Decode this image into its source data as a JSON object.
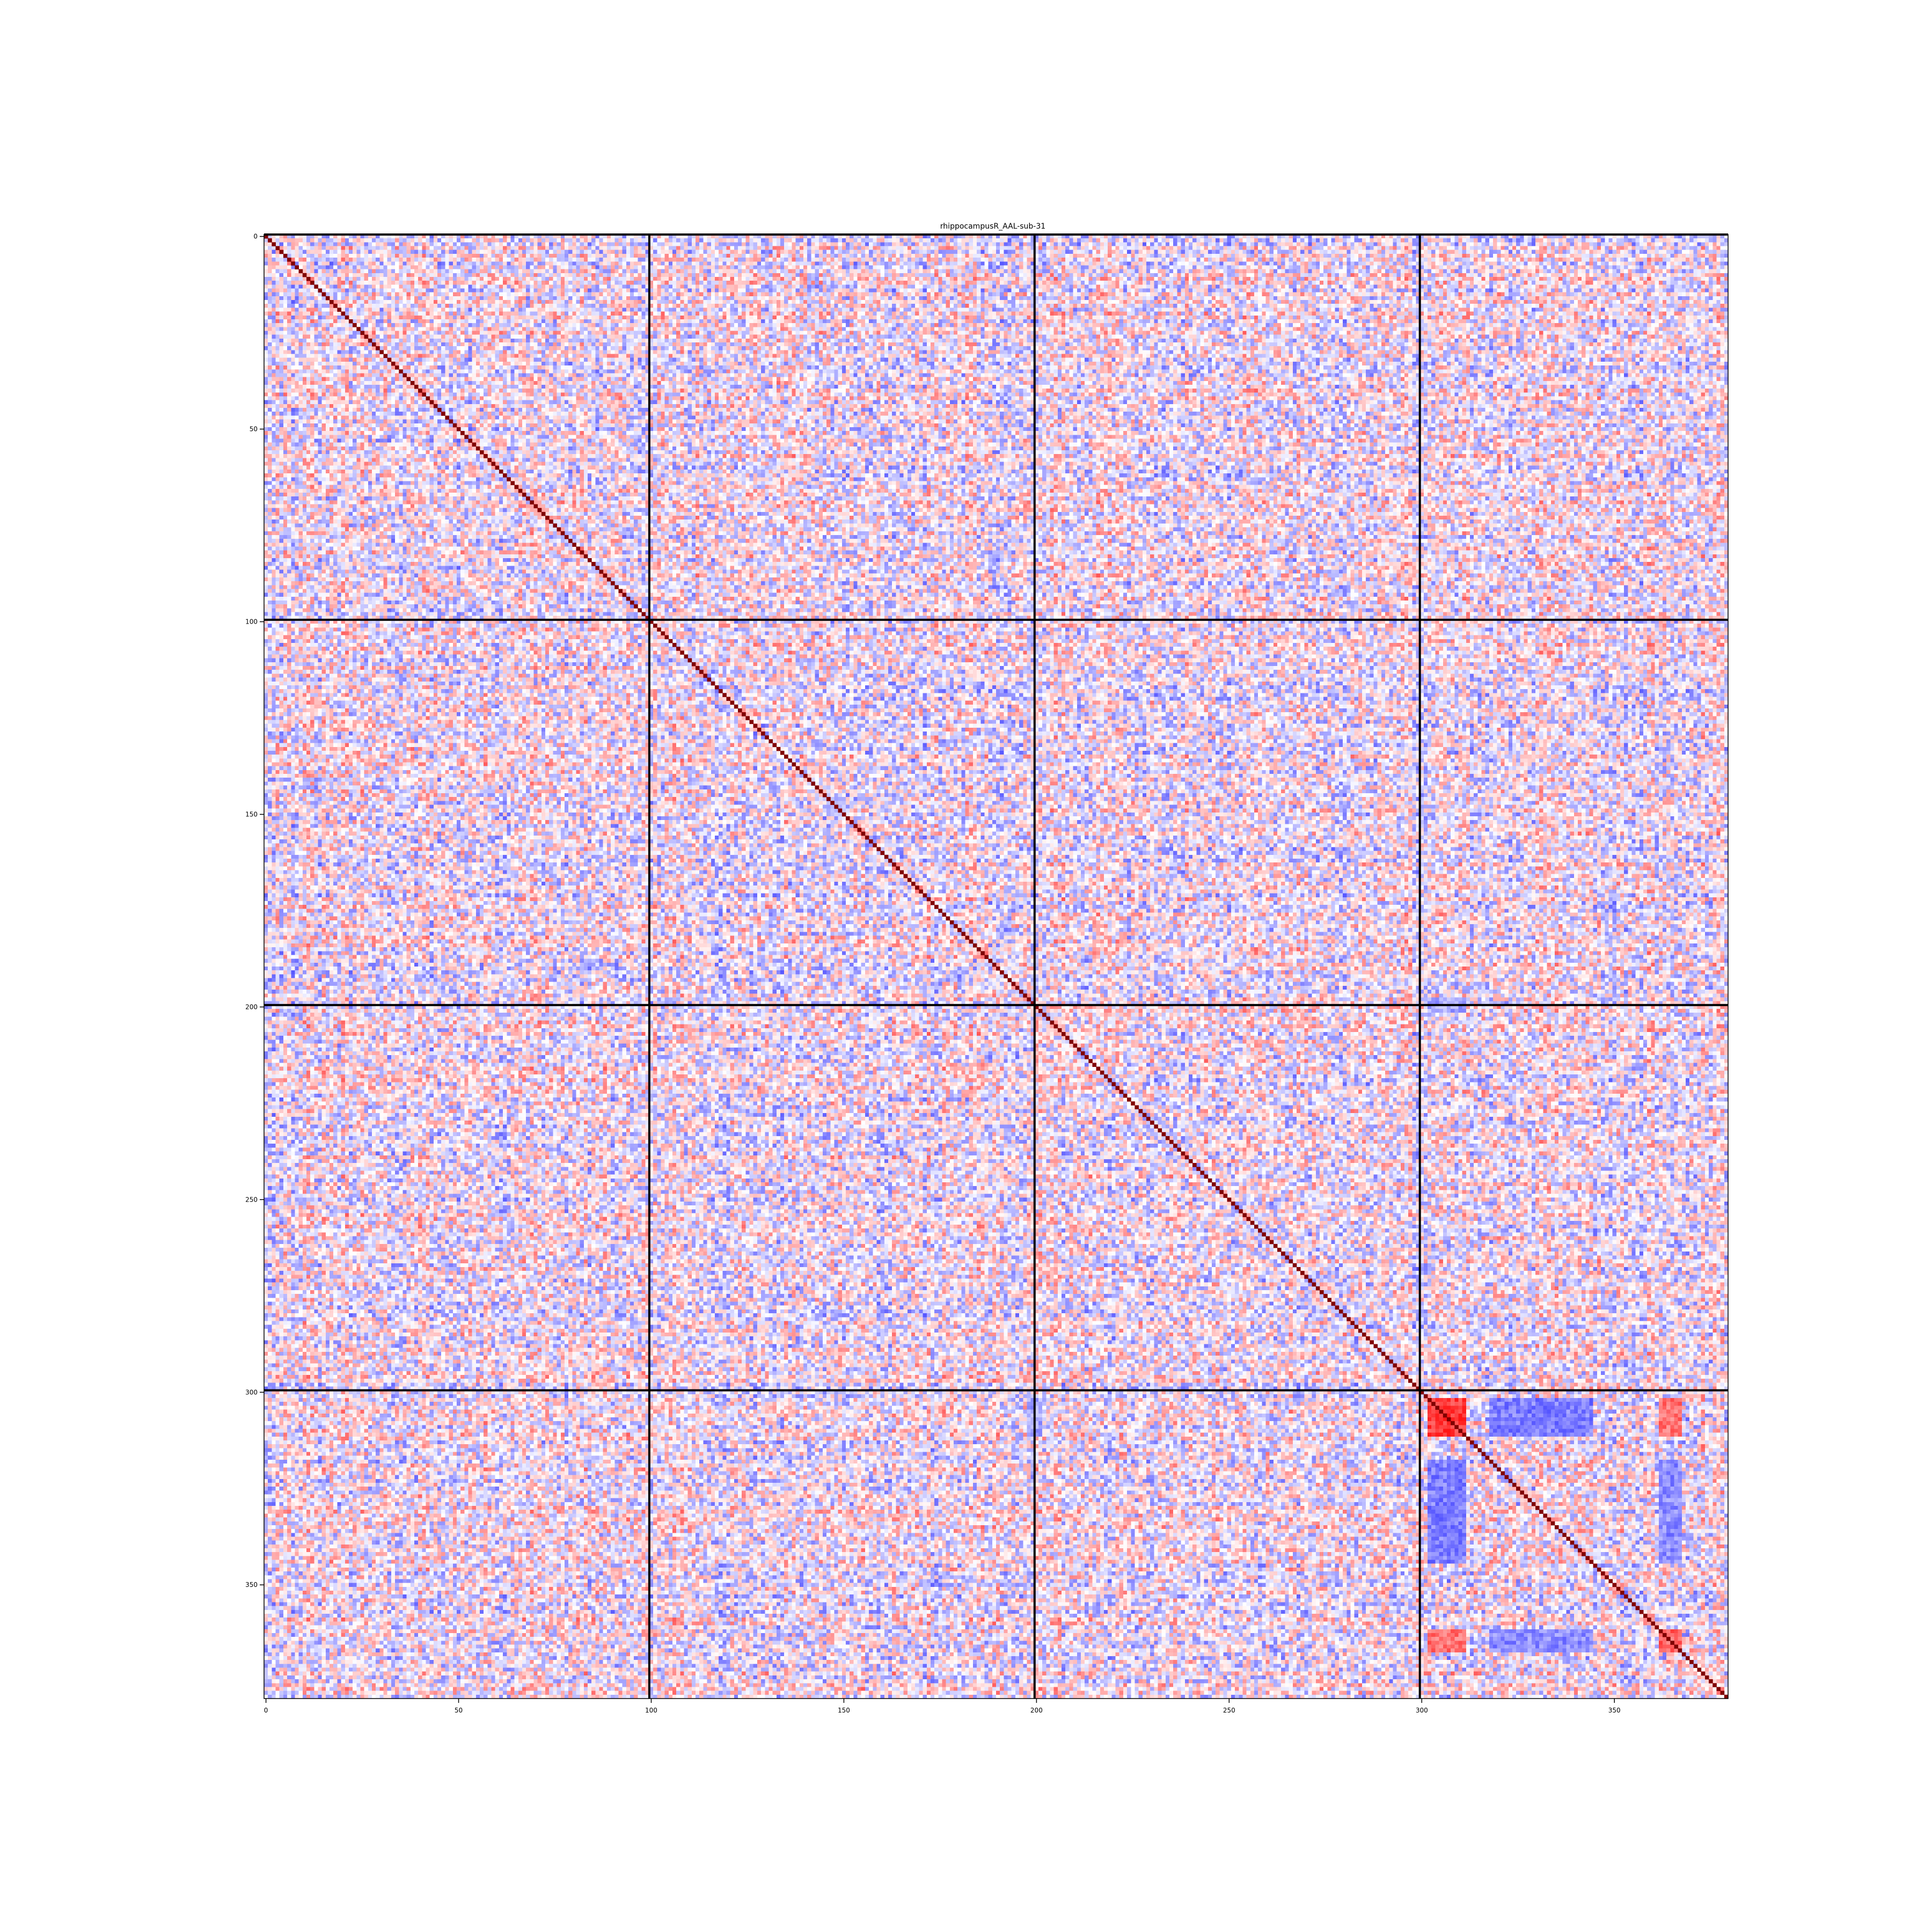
{
  "chart_data": {
    "type": "heatmap",
    "title": "rhippocampusR_AAL-sub-31",
    "xlabel": "",
    "ylabel": "",
    "n": 380,
    "xlim": [
      0,
      380
    ],
    "ylim": [
      380,
      0
    ],
    "x_ticks": [
      0,
      50,
      100,
      150,
      200,
      250,
      300,
      350
    ],
    "y_ticks": [
      0,
      50,
      100,
      150,
      200,
      250,
      300,
      350
    ],
    "x_tick_labels": [
      "0",
      "50",
      "100",
      "150",
      "200",
      "250",
      "300",
      "350"
    ],
    "y_tick_labels": [
      "0",
      "50",
      "100",
      "150",
      "200",
      "250",
      "300",
      "350"
    ],
    "block_boundaries": [
      100,
      200,
      300
    ],
    "colormap": "bwr",
    "value_range": [
      -1,
      1
    ],
    "diagonal_value": 1,
    "colors": {
      "negative": "#0000ff",
      "zero": "#ffffff",
      "positive": "#ff0000",
      "diagonal": "#800000",
      "boundary": "#000000"
    },
    "strong_positive_regions": [
      {
        "rows": [
          302,
          312
        ],
        "cols": [
          302,
          312
        ],
        "value": 0.75
      },
      {
        "rows": [
          362,
          368
        ],
        "cols": [
          362,
          368
        ],
        "value": 0.6
      },
      {
        "rows": [
          302,
          312
        ],
        "cols": [
          362,
          368
        ],
        "value": 0.55
      },
      {
        "rows": [
          362,
          368
        ],
        "cols": [
          302,
          312
        ],
        "value": 0.55
      }
    ],
    "strong_negative_regions": [
      {
        "rows": [
          318,
          345
        ],
        "cols": [
          302,
          312
        ],
        "value": -0.55
      },
      {
        "rows": [
          302,
          312
        ],
        "cols": [
          318,
          345
        ],
        "value": -0.5
      },
      {
        "rows": [
          318,
          345
        ],
        "cols": [
          362,
          368
        ],
        "value": -0.45
      },
      {
        "rows": [
          362,
          368
        ],
        "cols": [
          318,
          345
        ],
        "value": -0.45
      },
      {
        "rows": [
          302,
          312
        ],
        "cols": [
          25,
          38
        ],
        "value": -0.45
      },
      {
        "rows": [
          302,
          312
        ],
        "cols": [
          83,
          88
        ],
        "value": -0.5
      },
      {
        "rows": [
          362,
          368
        ],
        "cols": [
          83,
          88
        ],
        "value": -0.5
      },
      {
        "rows": [
          198,
          202
        ],
        "cols": [
          302,
          312
        ],
        "value": -0.35
      }
    ]
  }
}
